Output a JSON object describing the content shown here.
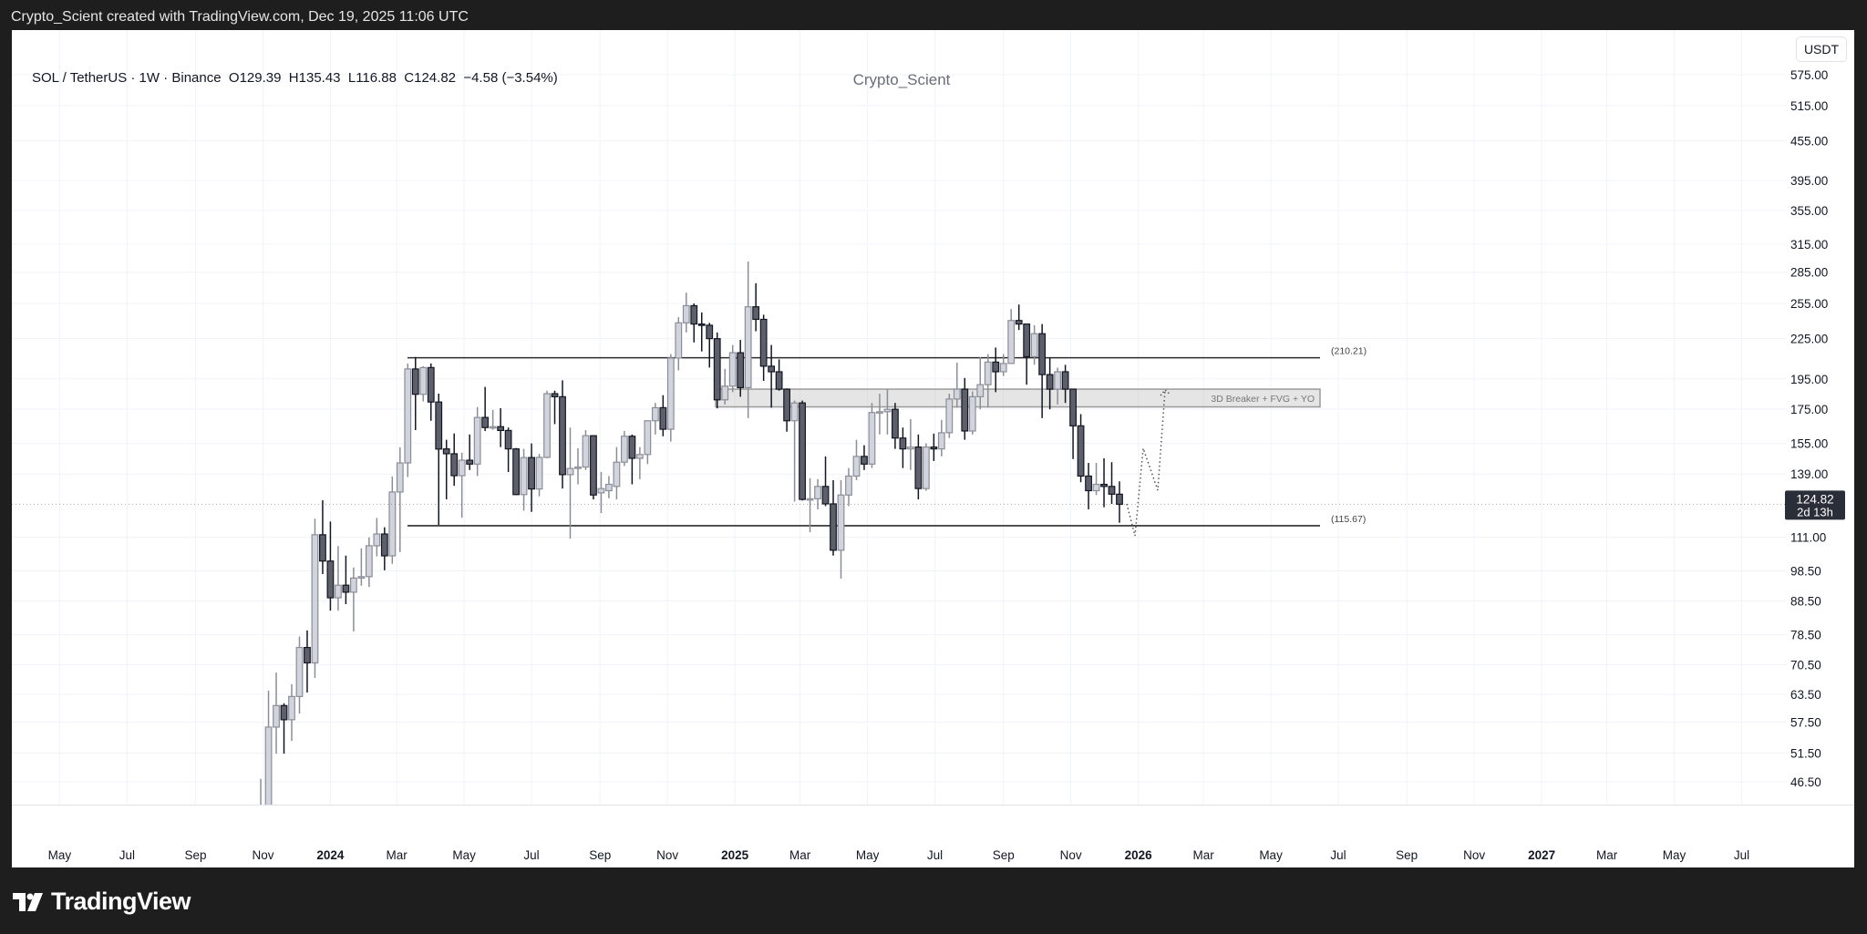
{
  "topbar": {
    "text": "Crypto_Scient created with TradingView.com, Dec 19, 2025 11:06 UTC"
  },
  "legend": {
    "text": "SOL / TetherUS · 1W · Binance  O129.39  H135.43  L116.88  C124.82  −4.58 (−3.54%)"
  },
  "watermark": "Crypto_Scient",
  "currency_button": "USDT",
  "current_price": {
    "value": "124.82",
    "countdown": "2d 13h"
  },
  "footer": {
    "brand": "TradingView"
  },
  "colors": {
    "bull_fill": "#d1d4dc",
    "bull_line": "#8b8e97",
    "bear_fill": "#5d606b",
    "bear_line": "#131722",
    "grid": "#f0f3fa",
    "price_tag": "#2a2e39"
  },
  "chart_data": {
    "type": "candlestick",
    "symbol": "SOL / TetherUS",
    "interval": "1W",
    "scale": "log",
    "ylim": [
      42.9,
      620
    ],
    "price_ticks": [
      "575.00",
      "515.00",
      "455.00",
      "395.00",
      "355.00",
      "315.00",
      "285.00",
      "255.00",
      "225.00",
      "195.00",
      "175.00",
      "155.00",
      "139.00",
      "111.00",
      "98.50",
      "88.50",
      "78.50",
      "70.50",
      "63.50",
      "57.50",
      "51.50",
      "46.50"
    ],
    "time_ticks": [
      "May",
      "Jul",
      "Sep",
      "Nov",
      "2024",
      "Mar",
      "May",
      "Jul",
      "Sep",
      "Nov",
      "2025",
      "Mar",
      "May",
      "Jul",
      "Sep",
      "Nov",
      "2026",
      "Mar",
      "May",
      "Jul",
      "Sep",
      "Nov",
      "2027",
      "Mar",
      "May",
      "Jul"
    ],
    "candles_ohlc": [
      [
        36,
        47,
        35,
        42
      ],
      [
        42,
        64.3,
        40,
        56.5
      ],
      [
        56.5,
        68.6,
        51.4,
        61
      ],
      [
        61,
        61.5,
        51.4,
        58
      ],
      [
        58,
        65.8,
        53.8,
        63
      ],
      [
        63,
        78,
        59.3,
        75
      ],
      [
        75,
        79.7,
        63.9,
        71
      ],
      [
        71,
        118.6,
        67.3,
        112
      ],
      [
        112,
        126.6,
        97.4,
        102
      ],
      [
        102,
        117.4,
        85.5,
        89.5
      ],
      [
        89.5,
        107.6,
        85.5,
        93.6
      ],
      [
        93.6,
        104,
        87.5,
        91.3
      ],
      [
        91.3,
        99.7,
        79.4,
        96
      ],
      [
        96,
        106.7,
        93.4,
        96.5
      ],
      [
        96.5,
        111,
        93,
        107.7
      ],
      [
        107.7,
        118.9,
        103.7,
        112.3
      ],
      [
        112.3,
        115,
        98.7,
        103.9
      ],
      [
        103.9,
        137.8,
        101,
        130.4
      ],
      [
        130.4,
        152.8,
        105.3,
        144.6
      ],
      [
        144.6,
        206,
        137.5,
        202
      ],
      [
        202,
        210.8,
        162.5,
        184.6
      ],
      [
        184.6,
        204,
        180,
        203
      ],
      [
        203,
        206,
        168,
        179.6
      ],
      [
        179.6,
        185,
        116,
        151.9
      ],
      [
        152,
        157,
        127,
        149.4
      ],
      [
        149.4,
        160.6,
        133.3,
        138.2
      ],
      [
        138.2,
        150,
        119,
        146
      ],
      [
        146,
        160,
        141,
        144
      ],
      [
        144,
        176.4,
        138,
        170
      ],
      [
        170,
        189.5,
        162,
        164
      ],
      [
        164,
        174.6,
        162.7,
        164.5
      ],
      [
        164.5,
        175.7,
        153,
        162.3
      ],
      [
        162.3,
        164,
        140,
        152
      ],
      [
        152,
        152.5,
        129,
        129.2
      ],
      [
        129.2,
        152,
        122,
        147.4
      ],
      [
        147.4,
        155,
        121.5,
        131.8
      ],
      [
        131.8,
        149.3,
        128.4,
        147.5
      ],
      [
        147.5,
        187,
        147,
        185
      ],
      [
        185,
        187,
        166,
        183
      ],
      [
        183,
        194,
        132,
        138.7
      ],
      [
        138.7,
        164,
        110.5,
        141.8
      ],
      [
        141.8,
        152.3,
        134,
        142.5
      ],
      [
        142.5,
        162.5,
        141,
        159.3
      ],
      [
        159.3,
        159.6,
        127,
        129
      ],
      [
        130,
        140,
        121,
        132
      ],
      [
        131,
        138,
        127.5,
        134
      ],
      [
        133,
        153,
        127,
        145
      ],
      [
        145,
        162,
        143,
        159
      ],
      [
        159,
        160,
        134,
        147
      ],
      [
        147,
        153,
        136.5,
        149
      ],
      [
        149,
        168,
        144,
        168
      ],
      [
        168,
        179,
        160,
        176
      ],
      [
        176,
        184,
        159,
        163
      ],
      [
        163,
        213,
        156,
        210
      ],
      [
        210,
        243,
        201,
        238
      ],
      [
        238,
        265,
        230,
        253
      ],
      [
        253,
        255,
        222,
        237
      ],
      [
        237,
        247,
        215,
        236
      ],
      [
        236,
        238,
        203,
        225
      ],
      [
        225,
        230,
        175.6,
        181
      ],
      [
        181,
        202,
        178,
        190
      ],
      [
        190,
        220,
        186,
        214
      ],
      [
        214,
        224,
        183,
        189
      ],
      [
        189,
        296,
        169.6,
        252
      ],
      [
        252,
        274,
        231,
        241
      ],
      [
        241,
        245,
        193.6,
        204
      ],
      [
        204,
        220,
        176,
        200
      ],
      [
        200,
        209,
        187,
        188
      ],
      [
        188,
        188.5,
        161.6,
        168
      ],
      [
        168,
        180.5,
        126,
        179
      ],
      [
        179,
        180.5,
        126.5,
        127
      ],
      [
        127,
        137,
        113,
        127.3
      ],
      [
        127.3,
        136.5,
        122.6,
        133
      ],
      [
        133,
        148,
        124,
        125
      ],
      [
        125,
        136,
        104,
        106
      ],
      [
        106,
        136,
        95.8,
        129
      ],
      [
        129,
        142,
        124,
        138
      ],
      [
        138,
        157,
        136,
        148
      ],
      [
        148,
        154,
        141,
        144
      ],
      [
        144,
        179,
        142,
        173
      ],
      [
        173,
        185,
        160,
        173.5
      ],
      [
        173.5,
        188,
        160,
        175
      ],
      [
        175,
        179,
        152,
        158
      ],
      [
        158,
        164,
        142,
        152
      ],
      [
        152,
        169,
        141,
        153
      ],
      [
        153,
        160,
        127,
        132
      ],
      [
        132,
        155,
        131,
        153
      ],
      [
        153,
        160.5,
        145.6,
        152
      ],
      [
        152,
        168.5,
        148,
        161
      ],
      [
        161,
        185,
        158,
        181.5
      ],
      [
        181.5,
        206.6,
        176,
        188
      ],
      [
        188,
        195.6,
        157,
        162
      ],
      [
        162,
        186.5,
        160,
        183
      ],
      [
        183,
        210.6,
        175,
        191
      ],
      [
        191,
        213,
        176,
        207
      ],
      [
        207,
        218,
        186,
        200
      ],
      [
        200,
        213,
        197,
        206
      ],
      [
        206,
        250,
        206,
        240
      ],
      [
        240,
        254,
        232,
        237
      ],
      [
        237,
        237,
        191,
        211
      ],
      [
        211,
        236,
        205,
        229
      ],
      [
        229,
        237,
        169.6,
        198
      ],
      [
        198,
        210,
        175,
        188
      ],
      [
        188,
        203,
        178,
        200
      ],
      [
        200,
        205,
        179,
        188
      ],
      [
        188,
        188,
        146.6,
        165
      ],
      [
        165,
        172,
        135,
        138
      ],
      [
        138,
        144.6,
        122.6,
        131
      ],
      [
        131,
        144.6,
        129,
        134
      ],
      [
        134,
        147,
        123.5,
        133
      ],
      [
        133,
        145,
        125,
        129.39
      ],
      [
        129.39,
        135.43,
        116.88,
        124.82
      ]
    ],
    "levels": [
      {
        "price": 210.21,
        "label": "(210.21)"
      },
      {
        "price": 115.67,
        "label": "(115.67)"
      }
    ],
    "zone": {
      "top": 188,
      "bottom": 176.5,
      "label": "3D Breaker + FVG + YO"
    },
    "projection_path": "dotted zig-zag: dip toward ~111, bounce to ~152, pullback to ~131, rally to ~188 zone"
  }
}
